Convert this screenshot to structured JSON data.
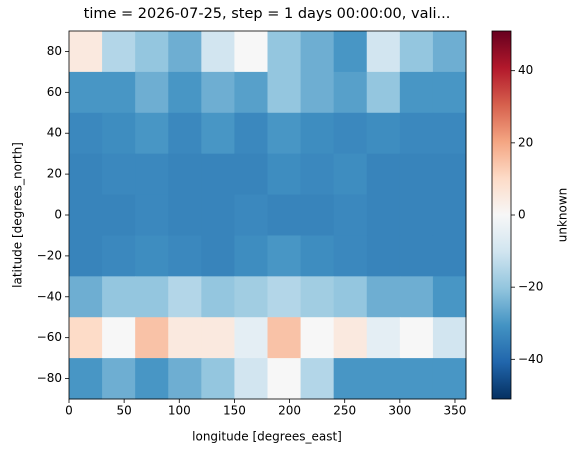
{
  "chart_data": {
    "type": "heatmap",
    "title": "time = 2026-07-25, step = 1 days 00:00:00, vali...",
    "xlabel": "longitude [degrees_east]",
    "ylabel": "latitude [degrees_north]",
    "colorbar_label": "unknown",
    "x": [
      15,
      45,
      75,
      105,
      135,
      165,
      195,
      225,
      255,
      285,
      315,
      345
    ],
    "y": [
      80,
      60,
      40,
      20,
      0,
      -20,
      -40,
      -60,
      -80
    ],
    "values": [
      [
        5,
        -15,
        -20,
        -25,
        -10,
        0,
        -20,
        -25,
        -30,
        -10,
        -20,
        -25
      ],
      [
        -30,
        -30,
        -25,
        -30,
        -25,
        -28,
        -20,
        -25,
        -28,
        -20,
        -30,
        -30
      ],
      [
        -33,
        -32,
        -30,
        -33,
        -30,
        -33,
        -30,
        -32,
        -33,
        -32,
        -33,
        -33
      ],
      [
        -34,
        -33,
        -33,
        -34,
        -34,
        -34,
        -32,
        -33,
        -32,
        -34,
        -34,
        -34
      ],
      [
        -34,
        -34,
        -33,
        -34,
        -34,
        -33,
        -34,
        -34,
        -33,
        -34,
        -34,
        -34
      ],
      [
        -34,
        -33,
        -32,
        -33,
        -34,
        -32,
        -30,
        -32,
        -33,
        -34,
        -34,
        -34
      ],
      [
        -25,
        -20,
        -20,
        -15,
        -20,
        -18,
        -15,
        -18,
        -20,
        -25,
        -25,
        -30
      ],
      [
        10,
        0,
        15,
        5,
        5,
        -5,
        15,
        0,
        5,
        -5,
        0,
        -10
      ],
      [
        -30,
        -25,
        -30,
        -25,
        -20,
        -10,
        0,
        -15,
        -30,
        -30,
        -30,
        -30
      ]
    ],
    "xlim": [
      0,
      360
    ],
    "ylim": [
      -90,
      90
    ],
    "xticks": [
      0,
      50,
      100,
      150,
      200,
      250,
      300,
      350
    ],
    "yticks": [
      {
        "value": -80,
        "label": "−80"
      },
      {
        "value": -60,
        "label": "−60"
      },
      {
        "value": -40,
        "label": "−40"
      },
      {
        "value": -20,
        "label": "−20"
      },
      0,
      20,
      40,
      60,
      80
    ],
    "clim": [
      -51,
      51
    ],
    "cticks": [
      {
        "value": -40,
        "label": "−40"
      },
      {
        "value": -20,
        "label": "−20"
      },
      0,
      20,
      40
    ],
    "colormap": [
      "#053061",
      "#2166ac",
      "#4393c3",
      "#92c5de",
      "#d1e5f0",
      "#f7f7f7",
      "#fddbc7",
      "#f4a582",
      "#d6604d",
      "#b2182b",
      "#67001f"
    ]
  }
}
